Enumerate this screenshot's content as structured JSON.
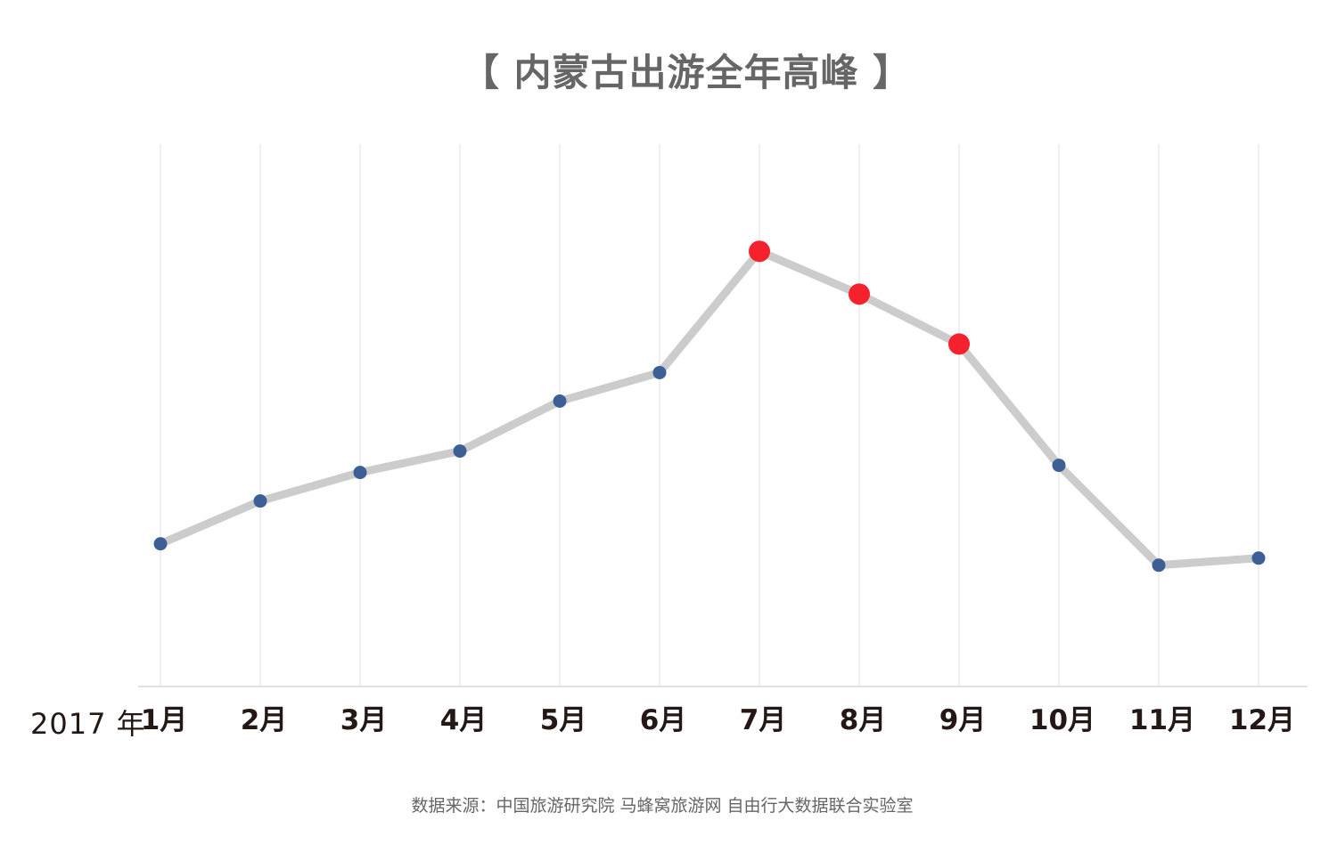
{
  "title": "【 内蒙古出游全年高峰 】",
  "year_label": "2017 年",
  "source": "数据来源：中国旅游研究院 马蜂窝旅游网 自由行大数据联合实验室",
  "colors": {
    "line": "#cccccc",
    "normal_point": "#3e5f96",
    "peak_point": "#f5222d",
    "grid": "#e6e6e6",
    "axis": "#d9d9d9"
  },
  "chart_data": {
    "type": "line",
    "categories": [
      "1月",
      "2月",
      "3月",
      "4月",
      "5月",
      "6月",
      "7月",
      "8月",
      "9月",
      "10月",
      "11月",
      "12月"
    ],
    "series": [
      {
        "values": [
          2.0,
          2.6,
          3.0,
          3.3,
          4.0,
          4.4,
          6.1,
          5.5,
          4.8,
          3.1,
          1.7,
          1.8
        ],
        "peak_months": [
          "7月",
          "8月",
          "9月"
        ]
      }
    ],
    "ylim": [
      0,
      8
    ],
    "y_axis_shown": false,
    "grid": "vertical"
  }
}
